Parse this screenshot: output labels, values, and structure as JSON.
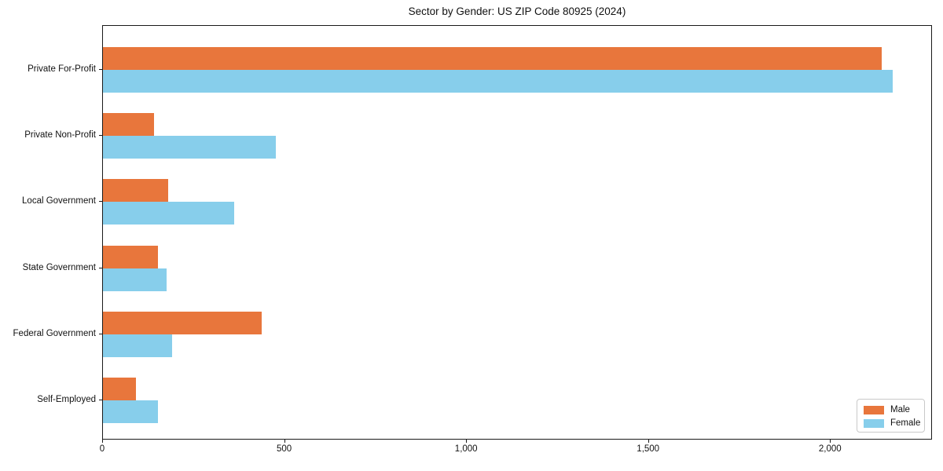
{
  "chart_data": {
    "type": "bar",
    "orientation": "horizontal",
    "title": "Sector by Gender: US ZIP Code 80925 (2024)",
    "categories": [
      "Private For-Profit",
      "Private Non-Profit",
      "Local Government",
      "State Government",
      "Federal Government",
      "Self-Employed"
    ],
    "category_order": "top-to-bottom",
    "series": [
      {
        "name": "Male",
        "color": "#E8763C",
        "values": [
          2140,
          140,
          180,
          150,
          435,
          90
        ]
      },
      {
        "name": "Female",
        "color": "#87CEEB",
        "values": [
          2170,
          475,
          360,
          175,
          190,
          150
        ]
      }
    ],
    "xlabel": "",
    "ylabel": "",
    "xlim": [
      0,
      2280
    ],
    "xticks": [
      0,
      500,
      1000,
      1500,
      2000
    ],
    "xtick_labels": [
      "0",
      "500",
      "1,000",
      "1,500",
      "2,000"
    ],
    "grid": false,
    "legend": {
      "position": "lower right",
      "entries": [
        "Male",
        "Female"
      ]
    }
  }
}
